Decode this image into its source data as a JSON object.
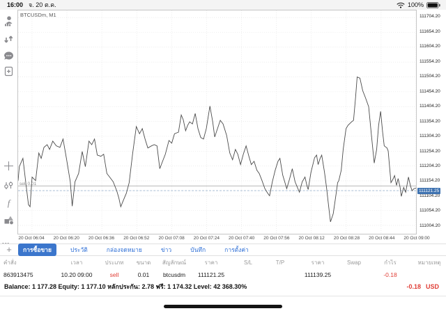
{
  "status_bar": {
    "time": "16:00",
    "date": "จ. 20 ต.ค.",
    "battery": "100%"
  },
  "sidebar": {
    "icons": [
      "accounts-icon",
      "trade-arrows-icon",
      "chat-icon",
      "new-order-icon",
      "crosshair-icon",
      "indicators-icon",
      "function-icon",
      "objects-icon"
    ],
    "timeframe": "M1"
  },
  "chart": {
    "symbol_label": "BTCUSDm, M1",
    "open_position_label": "sell 0.01",
    "current_price_badge": "111121.25",
    "accent_blue": "#3e72b0",
    "line_color": "#4a4a4a",
    "grid_color": "#e0e0e0"
  },
  "chart_data": {
    "type": "line",
    "title": "BTCUSDm, M1",
    "ylim": [
      110976,
      111728
    ],
    "y_ticks": [
      "111704.20",
      "111654.20",
      "111604.20",
      "111554.20",
      "111504.20",
      "111454.20",
      "111404.20",
      "111354.20",
      "111304.20",
      "111254.20",
      "111204.20",
      "111154.20",
      "111104.20",
      "111054.20",
      "111004.20"
    ],
    "x_labels": [
      "20 Oct 06:04",
      "20 Oct 06:20",
      "20 Oct 06:36",
      "20 Oct 06:52",
      "20 Oct 07:08",
      "20 Oct 07:24",
      "20 Oct 07:40",
      "20 Oct 07:56",
      "20 Oct 08:12",
      "20 Oct 08:28",
      "20 Oct 08:44",
      "20 Oct 09:00"
    ],
    "open_line_price": 111137,
    "current_price": 111121.25,
    "series": [
      {
        "name": "bid",
        "points": [
          [
            0,
            111155
          ],
          [
            0.003,
            111202
          ],
          [
            0.012,
            111230
          ],
          [
            0.019,
            111151
          ],
          [
            0.026,
            111074
          ],
          [
            0.03,
            111067
          ],
          [
            0.035,
            111167
          ],
          [
            0.044,
            111155
          ],
          [
            0.052,
            111248
          ],
          [
            0.058,
            111230
          ],
          [
            0.065,
            111267
          ],
          [
            0.073,
            111276
          ],
          [
            0.079,
            111260
          ],
          [
            0.087,
            111288
          ],
          [
            0.096,
            111272
          ],
          [
            0.105,
            111267
          ],
          [
            0.113,
            111295
          ],
          [
            0.122,
            111225
          ],
          [
            0.131,
            111151
          ],
          [
            0.136,
            111069
          ],
          [
            0.143,
            111151
          ],
          [
            0.152,
            111179
          ],
          [
            0.161,
            111253
          ],
          [
            0.169,
            111202
          ],
          [
            0.178,
            111288
          ],
          [
            0.185,
            111276
          ],
          [
            0.192,
            111295
          ],
          [
            0.199,
            111241
          ],
          [
            0.208,
            111237
          ],
          [
            0.215,
            111244
          ],
          [
            0.223,
            111179
          ],
          [
            0.23,
            111167
          ],
          [
            0.239,
            111151
          ],
          [
            0.248,
            111120
          ],
          [
            0.253,
            111097
          ],
          [
            0.258,
            111067
          ],
          [
            0.265,
            111090
          ],
          [
            0.272,
            111113
          ],
          [
            0.279,
            111148
          ],
          [
            0.288,
            111248
          ],
          [
            0.297,
            111337
          ],
          [
            0.305,
            111313
          ],
          [
            0.312,
            111330
          ],
          [
            0.319,
            111295
          ],
          [
            0.326,
            111265
          ],
          [
            0.335,
            111272
          ],
          [
            0.342,
            111276
          ],
          [
            0.349,
            111272
          ],
          [
            0.356,
            111195
          ],
          [
            0.363,
            111220
          ],
          [
            0.37,
            111244
          ],
          [
            0.379,
            111290
          ],
          [
            0.386,
            111281
          ],
          [
            0.393,
            111313
          ],
          [
            0.403,
            111318
          ],
          [
            0.41,
            111376
          ],
          [
            0.415,
            111360
          ],
          [
            0.421,
            111323
          ],
          [
            0.426,
            111341
          ],
          [
            0.431,
            111353
          ],
          [
            0.438,
            111346
          ],
          [
            0.445,
            111381
          ],
          [
            0.452,
            111330
          ],
          [
            0.459,
            111300
          ],
          [
            0.466,
            111295
          ],
          [
            0.473,
            111330
          ],
          [
            0.482,
            111406
          ],
          [
            0.489,
            111353
          ],
          [
            0.494,
            111302
          ],
          [
            0.501,
            111330
          ],
          [
            0.508,
            111358
          ],
          [
            0.515,
            111346
          ],
          [
            0.524,
            111307
          ],
          [
            0.532,
            111248
          ],
          [
            0.539,
            111225
          ],
          [
            0.546,
            111260
          ],
          [
            0.552,
            111244
          ],
          [
            0.559,
            111209
          ],
          [
            0.566,
            111244
          ],
          [
            0.573,
            111272
          ],
          [
            0.58,
            111237
          ],
          [
            0.586,
            111209
          ],
          [
            0.593,
            111220
          ],
          [
            0.6,
            111190
          ],
          [
            0.606,
            111179
          ],
          [
            0.613,
            111155
          ],
          [
            0.62,
            111128
          ],
          [
            0.627,
            111113
          ],
          [
            0.632,
            111104
          ],
          [
            0.639,
            111151
          ],
          [
            0.646,
            111190
          ],
          [
            0.653,
            111220
          ],
          [
            0.658,
            111230
          ],
          [
            0.665,
            111174
          ],
          [
            0.67,
            111151
          ],
          [
            0.675,
            111128
          ],
          [
            0.682,
            111160
          ],
          [
            0.689,
            111195
          ],
          [
            0.696,
            111151
          ],
          [
            0.702,
            111132
          ],
          [
            0.707,
            111116
          ],
          [
            0.714,
            111151
          ],
          [
            0.721,
            111167
          ],
          [
            0.726,
            111137
          ],
          [
            0.729,
            111125
          ],
          [
            0.736,
            111183
          ],
          [
            0.745,
            111232
          ],
          [
            0.75,
            111241
          ],
          [
            0.754,
            111209
          ],
          [
            0.759,
            111230
          ],
          [
            0.763,
            111241
          ],
          [
            0.77,
            111183
          ],
          [
            0.775,
            111132
          ],
          [
            0.78,
            111074
          ],
          [
            0.785,
            111016
          ],
          [
            0.792,
            111044
          ],
          [
            0.799,
            111109
          ],
          [
            0.803,
            111148
          ],
          [
            0.806,
            111155
          ],
          [
            0.812,
            111190
          ],
          [
            0.817,
            111260
          ],
          [
            0.824,
            111330
          ],
          [
            0.829,
            111341
          ],
          [
            0.838,
            111353
          ],
          [
            0.843,
            111358
          ],
          [
            0.848,
            111434
          ],
          [
            0.852,
            111504
          ],
          [
            0.859,
            111500
          ],
          [
            0.866,
            111458
          ],
          [
            0.873,
            111434
          ],
          [
            0.881,
            111404
          ],
          [
            0.888,
            111307
          ],
          [
            0.895,
            111214
          ],
          [
            0.901,
            111260
          ],
          [
            0.906,
            111341
          ],
          [
            0.911,
            111388
          ],
          [
            0.916,
            111318
          ],
          [
            0.92,
            111272
          ],
          [
            0.927,
            111265
          ],
          [
            0.93,
            111255
          ],
          [
            0.937,
            111148
          ],
          [
            0.942,
            111160
          ],
          [
            0.946,
            111172
          ],
          [
            0.951,
            111139
          ],
          [
            0.955,
            111162
          ],
          [
            0.96,
            111132
          ],
          [
            0.963,
            111102
          ],
          [
            0.969,
            111132
          ],
          [
            0.974,
            111116
          ],
          [
            0.981,
            111167
          ],
          [
            0.986,
            111137
          ],
          [
            0.99,
            111121
          ],
          [
            0.995,
            111128
          ],
          [
            1,
            111130
          ]
        ]
      }
    ]
  },
  "tabs": {
    "plus": "+",
    "items": [
      {
        "label": "การซื้อขาย",
        "active": true
      },
      {
        "label": "ประวัติ",
        "active": false
      },
      {
        "label": "กล่องจดหมาย",
        "active": false
      },
      {
        "label": "ข่าว",
        "active": false
      },
      {
        "label": "บันทึก",
        "active": false
      },
      {
        "label": "การตั้งค่า",
        "active": false
      }
    ]
  },
  "trade_table": {
    "headers": [
      "คำสั่ง",
      "เวลา",
      "ประเภท",
      "ขนาด",
      "สัญลักษณ์",
      "ราคา",
      "S/L",
      "T/P",
      "ราคา",
      "Swap",
      "กำไร",
      "หมายเหตุ"
    ],
    "rows": [
      [
        "863913475",
        "10.20 09:00",
        "sell",
        "0.01",
        "btcusdm",
        "111121.25",
        "",
        "",
        "111139.25",
        "",
        "-0.18",
        ""
      ]
    ],
    "red_cell_indexes": [
      2,
      10
    ]
  },
  "footer": {
    "balance_text": "Balance: 1 177.28 Equity: 1 177.10 หลักประกัน: 2.78 ฟรี: 1 174.32 Level: 42 368.30%",
    "profit": "-0.18",
    "currency": "USD"
  }
}
